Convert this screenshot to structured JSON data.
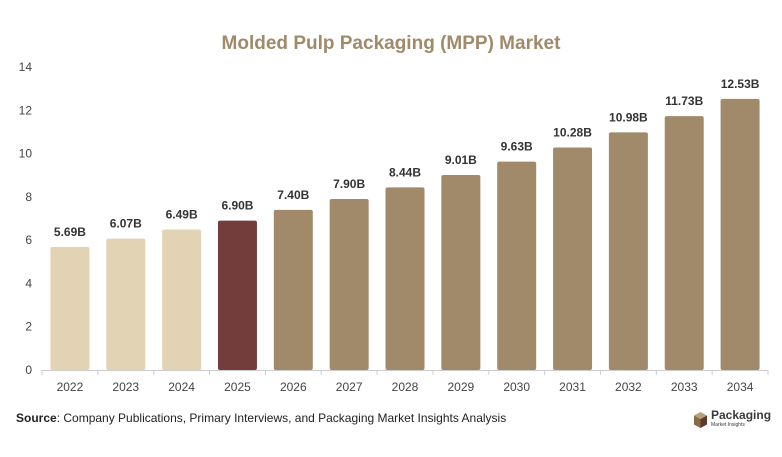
{
  "chart_data": {
    "type": "bar",
    "title": "Molded Pulp Packaging (MPP) Market",
    "xlabel": "",
    "ylabel": "",
    "ylim": [
      0,
      14
    ],
    "yticks": [
      "0",
      "2",
      "4",
      "6",
      "8",
      "10",
      "12",
      "14"
    ],
    "categories": [
      "2022",
      "2023",
      "2024",
      "2025",
      "2026",
      "2027",
      "2028",
      "2029",
      "2030",
      "2031",
      "2032",
      "2033",
      "2034"
    ],
    "values": [
      5.69,
      6.07,
      6.49,
      6.9,
      7.4,
      7.9,
      8.44,
      9.01,
      9.63,
      10.28,
      10.98,
      11.73,
      12.53
    ],
    "data_labels": [
      "5.69B",
      "6.07B",
      "6.49B",
      "6.90B",
      "7.40B",
      "7.90B",
      "8.44B",
      "9.01B",
      "9.63B",
      "10.28B",
      "10.98B",
      "11.73B",
      "12.53B"
    ],
    "bar_colors": [
      "#e2d3b5",
      "#e2d3b5",
      "#e2d3b5",
      "#733d3c",
      "#a08a6a",
      "#a08a6a",
      "#a08a6a",
      "#a08a6a",
      "#a08a6a",
      "#a08a6a",
      "#a08a6a",
      "#a08a6a",
      "#a08a6a"
    ],
    "grid": false,
    "legend": "none"
  },
  "footer": {
    "source_label": "Source",
    "source_text": ": Company Publications, Primary Interviews, and Packaging Market Insights Analysis"
  },
  "logo": {
    "name": "Packaging",
    "tagline": "Market Insights",
    "icon": "box-icon"
  }
}
